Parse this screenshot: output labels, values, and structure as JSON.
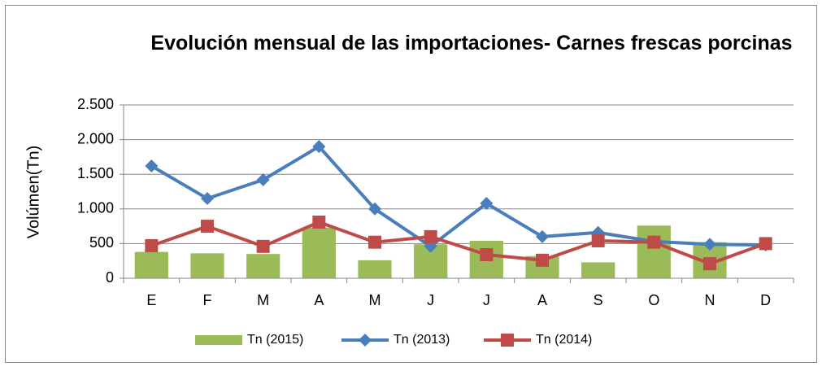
{
  "chart_data": {
    "type": "combo",
    "title": "Evolución mensual de las importaciones- Carnes frescas porcinas",
    "y_label": "Volúmen(Tn)",
    "categories": [
      "E",
      "F",
      "M",
      "A",
      "M",
      "J",
      "J",
      "A",
      "S",
      "O",
      "N",
      "D"
    ],
    "series": [
      {
        "name": "Tn (2015)",
        "type": "bar",
        "color": "#9bbb59",
        "values": [
          380,
          360,
          350,
          730,
          260,
          490,
          540,
          320,
          230,
          760,
          520,
          null
        ]
      },
      {
        "name": "Tn (2013)",
        "type": "line",
        "marker": "diamond",
        "color": "#4a7ebb",
        "values": [
          1620,
          1150,
          1420,
          1900,
          1000,
          460,
          1080,
          600,
          660,
          530,
          490,
          480
        ]
      },
      {
        "name": "Tn (2014)",
        "type": "line",
        "marker": "square",
        "color": "#be4b48",
        "values": [
          470,
          750,
          460,
          810,
          520,
          600,
          340,
          260,
          540,
          520,
          210,
          500
        ]
      }
    ],
    "ylim": [
      0,
      2500
    ],
    "yticks": [
      0,
      500,
      {
        "value": 1000,
        "label": "1.000"
      },
      {
        "value": 1500,
        "label": "1.500"
      },
      {
        "value": 2000,
        "label": "2.000"
      },
      {
        "value": 2500,
        "label": "2.500"
      }
    ],
    "grid": true,
    "legend": "bottom"
  }
}
